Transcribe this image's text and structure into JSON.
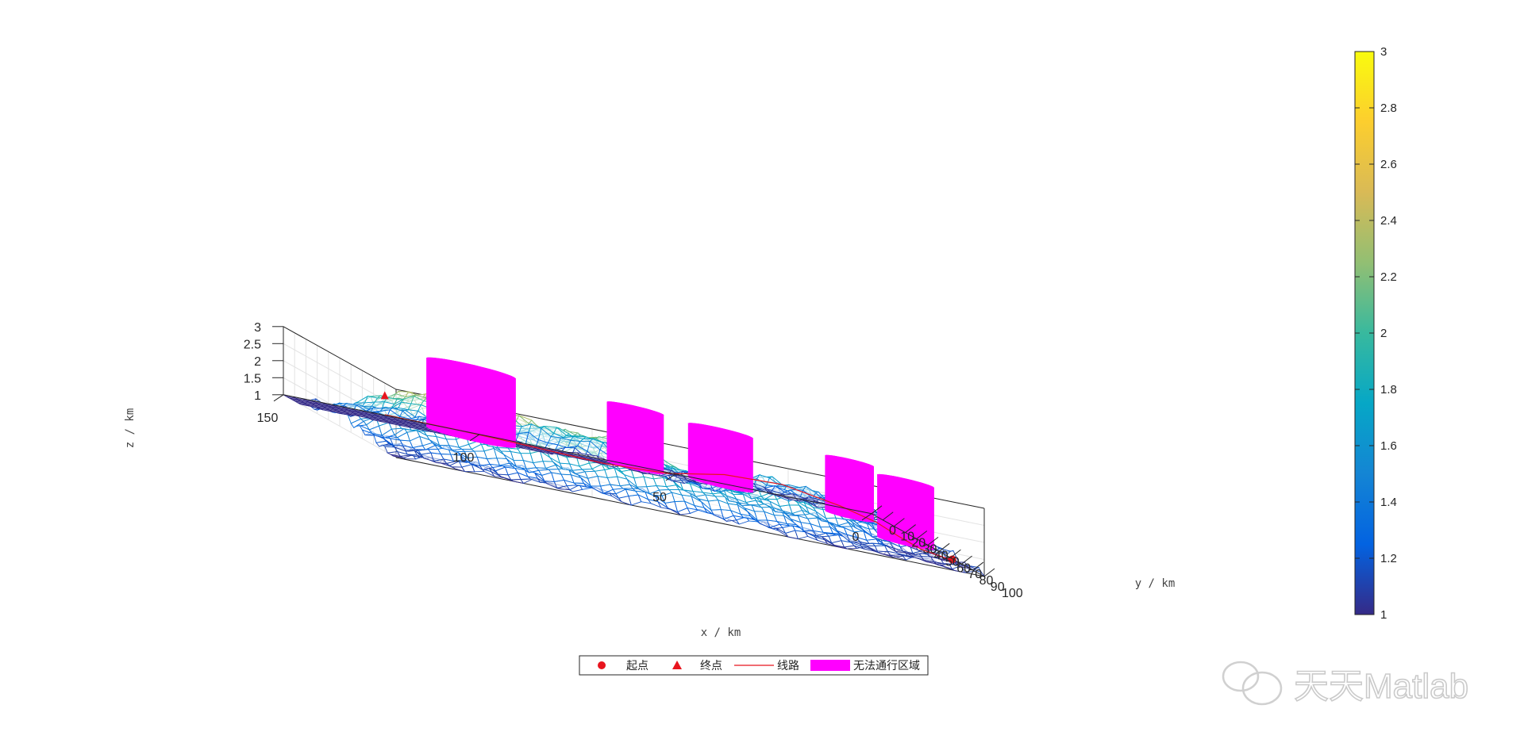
{
  "chart_data": {
    "type": "surface",
    "x": {
      "label": "x / km",
      "range": [
        0,
        150
      ],
      "ticks": [
        0,
        50,
        100,
        150
      ]
    },
    "y": {
      "label": "y / km",
      "range": [
        0,
        100
      ],
      "ticks": [
        0,
        10,
        20,
        30,
        40,
        50,
        60,
        70,
        80,
        90,
        100
      ]
    },
    "z": {
      "label": "z / km",
      "range": [
        1,
        3
      ],
      "ticks": [
        1,
        1.5,
        2,
        2.5,
        3
      ]
    },
    "colorbar": {
      "range": [
        1,
        3
      ],
      "ticks": [
        1,
        1.2,
        1.4,
        1.6,
        1.8,
        2,
        2.2,
        2.4,
        2.6,
        2.8,
        3
      ],
      "colormap": "parula"
    },
    "start_point": {
      "x": 3,
      "y": 82,
      "z": 1.1
    },
    "end_point": {
      "x": 125,
      "y": 3,
      "z": 1.6
    },
    "obstacles": [
      {
        "x": 105,
        "y": 10,
        "r": 11
      },
      {
        "x": 68,
        "y": 27,
        "r": 7
      },
      {
        "x": 50,
        "y": 40,
        "r": 8
      },
      {
        "x": 20,
        "y": 50,
        "r": 6
      },
      {
        "x": 12,
        "y": 72,
        "r": 7
      }
    ],
    "route": [
      {
        "x": 3,
        "y": 82
      },
      {
        "x": 7,
        "y": 68
      },
      {
        "x": 10,
        "y": 58
      },
      {
        "x": 13,
        "y": 50
      },
      {
        "x": 20,
        "y": 42
      },
      {
        "x": 32,
        "y": 32
      },
      {
        "x": 45,
        "y": 26
      },
      {
        "x": 58,
        "y": 20
      },
      {
        "x": 72,
        "y": 14
      },
      {
        "x": 90,
        "y": 8
      },
      {
        "x": 108,
        "y": 4
      },
      {
        "x": 125,
        "y": 3
      }
    ],
    "legend": {
      "placement": "bottom",
      "entries": [
        {
          "label": "起点",
          "marker": "circle",
          "color": "#e8141e"
        },
        {
          "label": "终点",
          "marker": "triangle",
          "color": "#e8141e"
        },
        {
          "label": "线路",
          "marker": "line",
          "color": "#e8141e"
        },
        {
          "label": "无法通行区域",
          "marker": "patch",
          "color": "#ff00ff"
        }
      ]
    },
    "colors": {
      "obstacle": "#ff00ff",
      "route": "#e8141e",
      "axes": "#262626",
      "grid": "#e3e3e3"
    }
  },
  "watermark": {
    "text": "天天Matlab"
  }
}
